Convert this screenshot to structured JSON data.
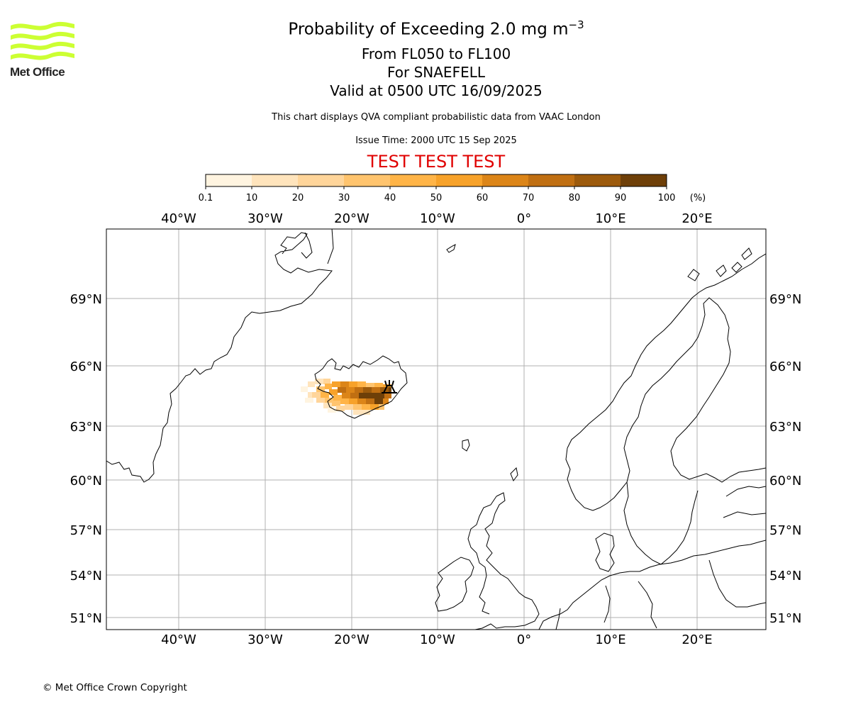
{
  "logo": {
    "text": "Met Office",
    "color": "#ccff33"
  },
  "title": {
    "main_prefix": "Probability of Exceeding 2.0 mg m",
    "main_superscript": "−3",
    "flight_levels": "From FL050 to FL100",
    "volcano": "For SNAEFELL",
    "valid": "Valid at 0500 UTC 16/09/2025"
  },
  "subtitle": "This chart displays QVA compliant probabilistic data from VAAC London",
  "issue_time": "Issue Time: 2000 UTC 15 Sep 2025",
  "test_banner": "TEST TEST TEST",
  "test_color": "#e00000",
  "colorbar": {
    "ticks": [
      "0.1",
      "10",
      "20",
      "30",
      "40",
      "50",
      "60",
      "70",
      "80",
      "90",
      "100"
    ],
    "unit": "(%)",
    "colors": [
      "#fff4e0",
      "#ffe4bc",
      "#ffd59a",
      "#ffc46e",
      "#ffb447",
      "#f7a22a",
      "#dc8518",
      "#c06f12",
      "#9c5a0c",
      "#6e3f08"
    ]
  },
  "map": {
    "lon_ticks": [
      "40°W",
      "30°W",
      "20°W",
      "10°W",
      "0°",
      "10°E",
      "20°E"
    ],
    "lat_ticks": [
      "69°N",
      "66°N",
      "63°N",
      "60°N",
      "57°N",
      "54°N",
      "51°N"
    ],
    "volcano_marker": "volcano-symbol"
  },
  "copyright": "© Met Office Crown Copyright"
}
